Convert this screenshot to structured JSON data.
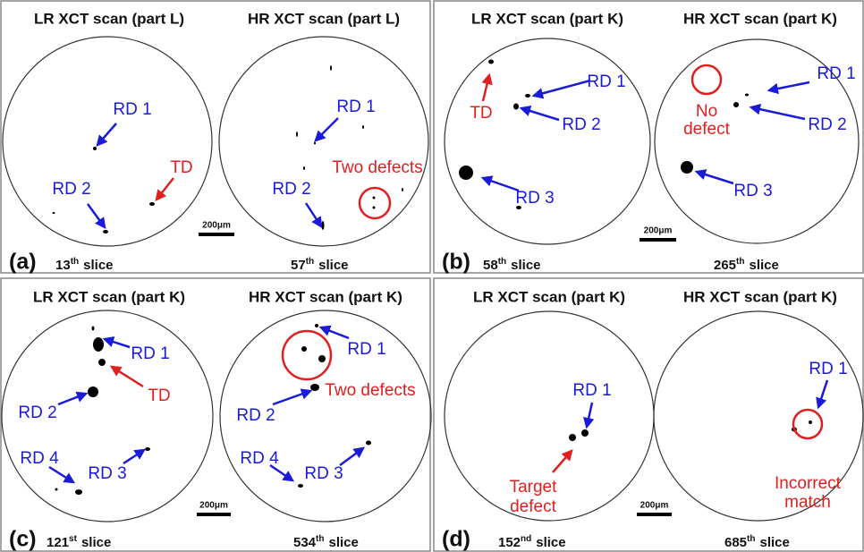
{
  "panels": [
    {
      "label": "(a)",
      "scale_bar": "200μm",
      "scans": [
        {
          "title": "LR XCT scan (part L)",
          "slice": {
            "number": "13",
            "suffix": "th",
            "word": "slice"
          }
        },
        {
          "title": "HR XCT scan (part L)",
          "slice": {
            "number": "57",
            "suffix": "th",
            "word": "slice"
          }
        }
      ],
      "labels": [
        "RD 1",
        "RD 2",
        "TD",
        "RD 1",
        "RD 2",
        "Two defects"
      ]
    },
    {
      "label": "(b)",
      "scale_bar": "200μm",
      "scans": [
        {
          "title": "LR XCT scan (part K)",
          "slice": {
            "number": "58",
            "suffix": "th",
            "word": "slice"
          }
        },
        {
          "title": "HR XCT scan (part K)",
          "slice": {
            "number": "265",
            "suffix": "th",
            "word": "slice"
          }
        }
      ],
      "labels": [
        "TD",
        "RD 1",
        "RD 2",
        "RD 3",
        "No",
        "defect",
        "RD 1",
        "RD 2",
        "RD 3"
      ]
    },
    {
      "label": "(c)",
      "scale_bar": "200μm",
      "scans": [
        {
          "title": "LR XCT scan (part K)",
          "slice": {
            "number": "121",
            "suffix": "st",
            "word": "slice"
          }
        },
        {
          "title": "HR XCT scan (part K)",
          "slice": {
            "number": "534",
            "suffix": "th",
            "word": "slice"
          }
        }
      ],
      "labels": [
        "RD 1",
        "TD",
        "RD 2",
        "RD 4",
        "RD 3",
        "RD 1",
        "Two defects",
        "RD 2",
        "RD 4",
        "RD 3"
      ]
    },
    {
      "label": "(d)",
      "scale_bar": "200μm",
      "scans": [
        {
          "title": "LR XCT scan (part K)",
          "slice": {
            "number": "152",
            "suffix": "nd",
            "word": "slice"
          }
        },
        {
          "title": "HR XCT scan (part K)",
          "slice": {
            "number": "685",
            "suffix": "th",
            "word": "slice"
          }
        }
      ],
      "labels": [
        "RD 1",
        "Target",
        "defect",
        "RD 1",
        "Incorrect",
        "match"
      ]
    }
  ]
}
